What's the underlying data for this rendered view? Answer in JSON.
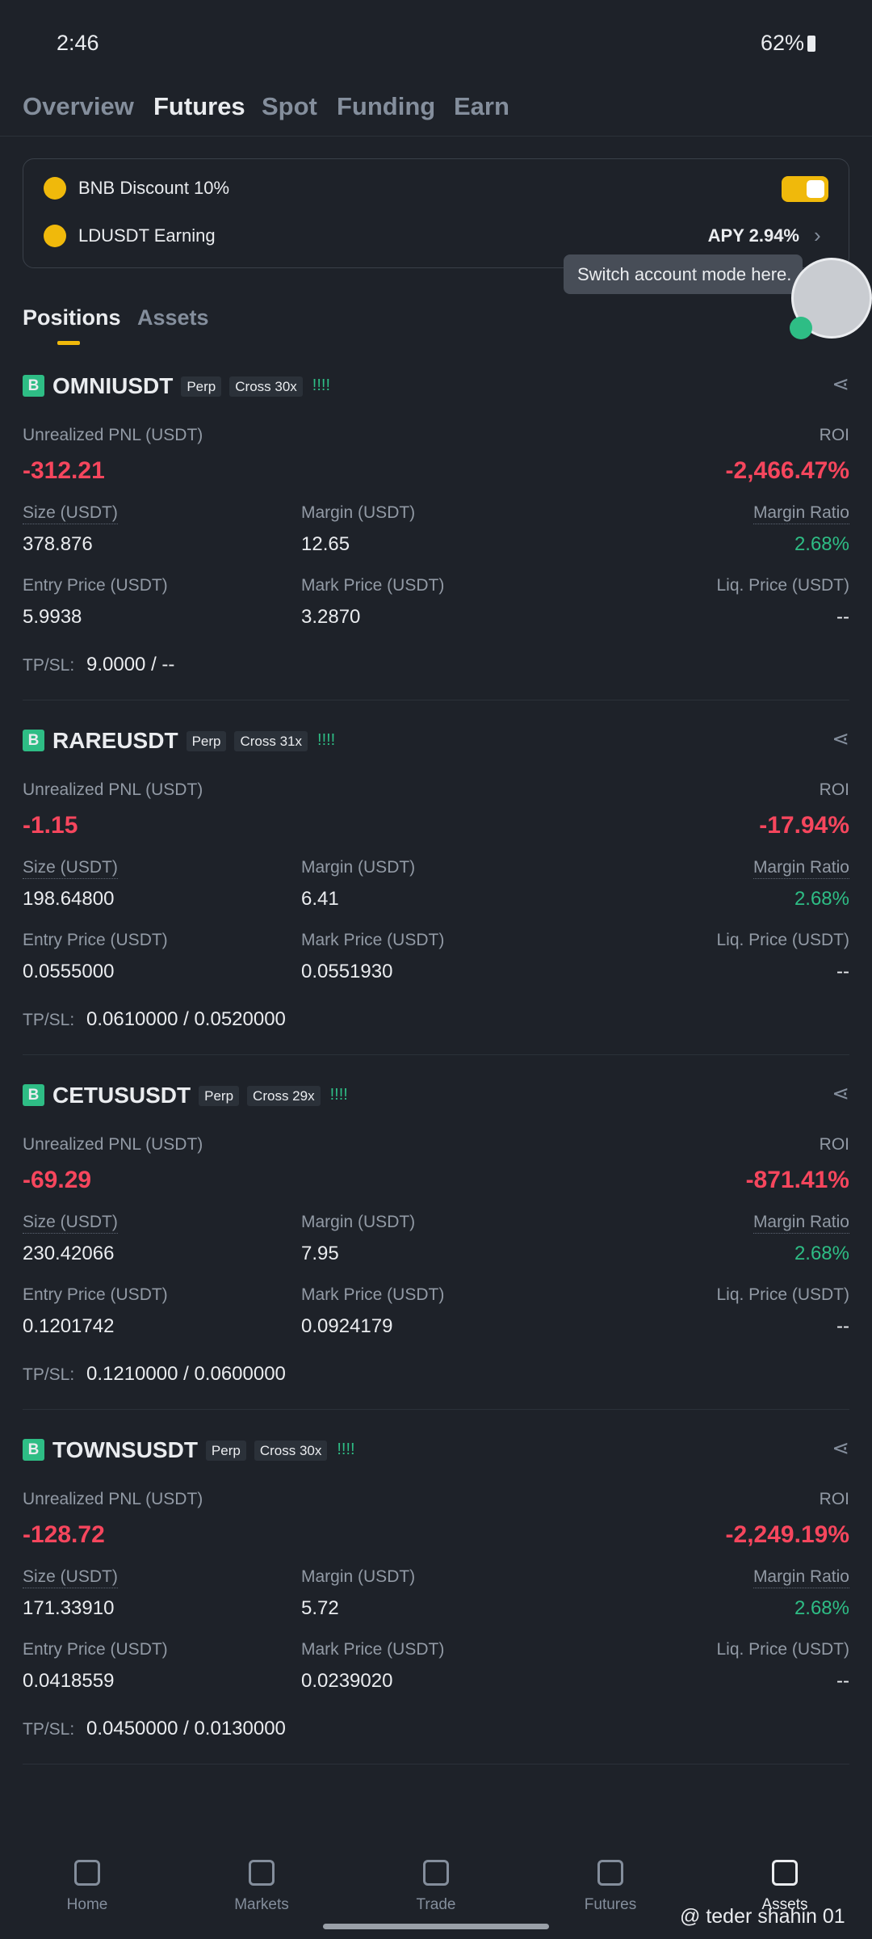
{
  "status": {
    "time": "2:46",
    "battery": "62%"
  },
  "tabs": [
    "Overview",
    "Futures",
    "Spot",
    "Funding",
    "Earn"
  ],
  "card": {
    "bnb_discount": "BNB Discount 10%",
    "ldusdt": "LDUSDT Earning",
    "apy": "APY 2.94%"
  },
  "tooltip": "Switch account mode here.",
  "subtabs": [
    "Positions",
    "Assets"
  ],
  "positions": [
    {
      "side": "B",
      "symbol": "OMNIUSDT",
      "perp": "Perp",
      "cross": "Cross 30x",
      "signal": "!!!!",
      "pnl_label": "Unrealized PNL (USDT)",
      "pnl": "-312.21",
      "roi_label": "ROI",
      "roi": "-2,466.47%",
      "size_label": "Size (USDT)",
      "size": "378.876",
      "margin_label": "Margin (USDT)",
      "margin": "12.65",
      "ratio_label": "Margin Ratio",
      "ratio": "2.68%",
      "entry_label": "Entry Price (USDT)",
      "entry": "5.9938",
      "mark_label": "Mark Price (USDT)",
      "mark": "3.2870",
      "liq_label": "Liq. Price (USDT)",
      "liq": "--",
      "tpsl_label": "TP/SL:",
      "tpsl": "9.0000 / --"
    },
    {
      "side": "B",
      "symbol": "RAREUSDT",
      "perp": "Perp",
      "cross": "Cross 31x",
      "signal": "!!!!",
      "pnl_label": "Unrealized PNL (USDT)",
      "pnl": "-1.15",
      "roi_label": "ROI",
      "roi": "-17.94%",
      "size_label": "Size (USDT)",
      "size": "198.64800",
      "margin_label": "Margin (USDT)",
      "margin": "6.41",
      "ratio_label": "Margin Ratio",
      "ratio": "2.68%",
      "entry_label": "Entry Price (USDT)",
      "entry": "0.0555000",
      "mark_label": "Mark Price (USDT)",
      "mark": "0.0551930",
      "liq_label": "Liq. Price (USDT)",
      "liq": "--",
      "tpsl_label": "TP/SL:",
      "tpsl": "0.0610000 / 0.0520000"
    },
    {
      "side": "B",
      "symbol": "CETUSUSDT",
      "perp": "Perp",
      "cross": "Cross 29x",
      "signal": "!!!!",
      "pnl_label": "Unrealized PNL (USDT)",
      "pnl": "-69.29",
      "roi_label": "ROI",
      "roi": "-871.41%",
      "size_label": "Size (USDT)",
      "size": "230.42066",
      "margin_label": "Margin (USDT)",
      "margin": "7.95",
      "ratio_label": "Margin Ratio",
      "ratio": "2.68%",
      "entry_label": "Entry Price (USDT)",
      "entry": "0.1201742",
      "mark_label": "Mark Price (USDT)",
      "mark": "0.0924179",
      "liq_label": "Liq. Price (USDT)",
      "liq": "--",
      "tpsl_label": "TP/SL:",
      "tpsl": "0.1210000 / 0.0600000"
    },
    {
      "side": "B",
      "symbol": "TOWNSUSDT",
      "perp": "Perp",
      "cross": "Cross 30x",
      "signal": "!!!!",
      "pnl_label": "Unrealized PNL (USDT)",
      "pnl": "-128.72",
      "roi_label": "ROI",
      "roi": "-2,249.19%",
      "size_label": "Size (USDT)",
      "size": "171.33910",
      "margin_label": "Margin (USDT)",
      "margin": "5.72",
      "ratio_label": "Margin Ratio",
      "ratio": "2.68%",
      "entry_label": "Entry Price (USDT)",
      "entry": "0.0418559",
      "mark_label": "Mark Price (USDT)",
      "mark": "0.0239020",
      "liq_label": "Liq. Price (USDT)",
      "liq": "--",
      "tpsl_label": "TP/SL:",
      "tpsl": "0.0450000 / 0.0130000"
    }
  ],
  "nav": [
    "Home",
    "Markets",
    "Trade",
    "Futures",
    "Assets"
  ],
  "watermark": "@ teder shahin 01"
}
